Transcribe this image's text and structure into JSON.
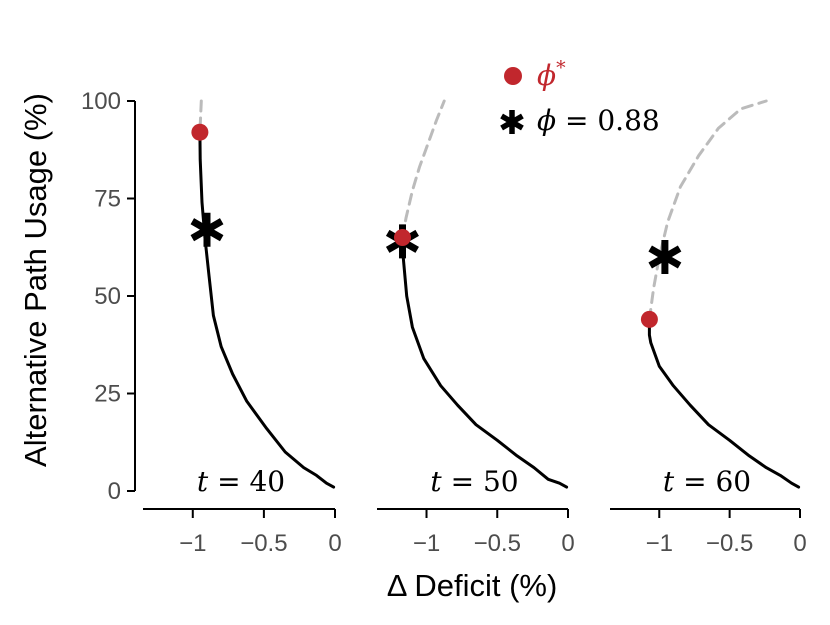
{
  "chart_data": {
    "type": "line",
    "ylabel": "Alternative Path Usage (%)",
    "xlabel": "Δ Deficit (%)",
    "ylim": [
      0,
      100
    ],
    "yticks": [
      0,
      25,
      50,
      75,
      100
    ],
    "ytick_labels": [
      "0",
      "25",
      "50",
      "75",
      "100"
    ],
    "grid": false,
    "legend": {
      "placement": "top-center",
      "entries": [
        {
          "marker": "dot",
          "symbol": "ϕ",
          "sup": "*",
          "color": "#c1272d"
        },
        {
          "marker": "star",
          "symbol": "ϕ",
          "rest": " = 0.88",
          "color": "#000000"
        }
      ]
    },
    "line_colors": {
      "solid": "#000000",
      "dashed": "#bbbbbb",
      "point": "#c1272d",
      "star": "#000000"
    },
    "panels": [
      {
        "label_var": "t",
        "label_rest": " = 40",
        "xlim": [
          -1.35,
          0
        ],
        "xticks": [
          -1,
          -0.5,
          0
        ],
        "xtick_labels": [
          "−1",
          "−0.5",
          "0"
        ],
        "solid_curve": [
          [
            -0.95,
            92
          ],
          [
            -0.948,
            85
          ],
          [
            -0.935,
            74
          ],
          [
            -0.915,
            65
          ],
          [
            -0.885,
            55
          ],
          [
            -0.855,
            45
          ],
          [
            -0.8,
            37
          ],
          [
            -0.72,
            30
          ],
          [
            -0.62,
            23
          ],
          [
            -0.48,
            16
          ],
          [
            -0.35,
            10
          ],
          [
            -0.22,
            6
          ],
          [
            -0.13,
            4
          ],
          [
            -0.06,
            2
          ],
          [
            -0.01,
            1
          ]
        ],
        "dashed_curve": [
          [
            -0.94,
            100
          ],
          [
            -0.945,
            96
          ],
          [
            -0.95,
            92
          ]
        ],
        "phi_star": {
          "x": -0.95,
          "y": 92
        },
        "phi_088": {
          "x": -0.9,
          "y": 67
        }
      },
      {
        "label_var": "t",
        "label_rest": " = 50",
        "xlim": [
          -1.35,
          0
        ],
        "xticks": [
          -1,
          -0.5,
          0
        ],
        "xtick_labels": [
          "−1",
          "−0.5",
          "0"
        ],
        "solid_curve": [
          [
            -1.17,
            65
          ],
          [
            -1.165,
            60
          ],
          [
            -1.14,
            50
          ],
          [
            -1.1,
            42
          ],
          [
            -1.02,
            34
          ],
          [
            -0.9,
            27
          ],
          [
            -0.78,
            22
          ],
          [
            -0.65,
            17
          ],
          [
            -0.5,
            13
          ],
          [
            -0.36,
            9
          ],
          [
            -0.24,
            6
          ],
          [
            -0.14,
            3
          ],
          [
            -0.06,
            2
          ],
          [
            -0.01,
            1
          ]
        ],
        "dashed_curve": [
          [
            -1.17,
            65
          ],
          [
            -1.145,
            70
          ],
          [
            -1.1,
            77
          ],
          [
            -1.05,
            83
          ],
          [
            -0.99,
            89
          ],
          [
            -0.93,
            95
          ],
          [
            -0.875,
            100
          ]
        ],
        "phi_star": {
          "x": -1.17,
          "y": 65
        },
        "phi_088": {
          "x": -1.17,
          "y": 64
        }
      },
      {
        "label_var": "t",
        "label_rest": " = 60",
        "xlim": [
          -1.35,
          0
        ],
        "xticks": [
          -1,
          -0.5,
          0
        ],
        "xtick_labels": [
          "−1",
          "−0.5",
          "0"
        ],
        "solid_curve": [
          [
            -1.07,
            44
          ],
          [
            -1.07,
            40
          ],
          [
            -1.06,
            38
          ],
          [
            -1.0,
            32
          ],
          [
            -0.9,
            27
          ],
          [
            -0.78,
            22
          ],
          [
            -0.65,
            17
          ],
          [
            -0.5,
            13
          ],
          [
            -0.36,
            9
          ],
          [
            -0.24,
            6
          ],
          [
            -0.14,
            4
          ],
          [
            -0.06,
            2
          ],
          [
            -0.01,
            1
          ]
        ],
        "dashed_curve": [
          [
            -1.07,
            44
          ],
          [
            -1.04,
            52
          ],
          [
            -1.0,
            60
          ],
          [
            -0.94,
            69
          ],
          [
            -0.85,
            78
          ],
          [
            -0.72,
            86
          ],
          [
            -0.58,
            93
          ],
          [
            -0.42,
            98
          ],
          [
            -0.24,
            100
          ]
        ],
        "phi_star": {
          "x": -1.07,
          "y": 44
        },
        "phi_088": {
          "x": -0.96,
          "y": 60
        }
      }
    ]
  }
}
